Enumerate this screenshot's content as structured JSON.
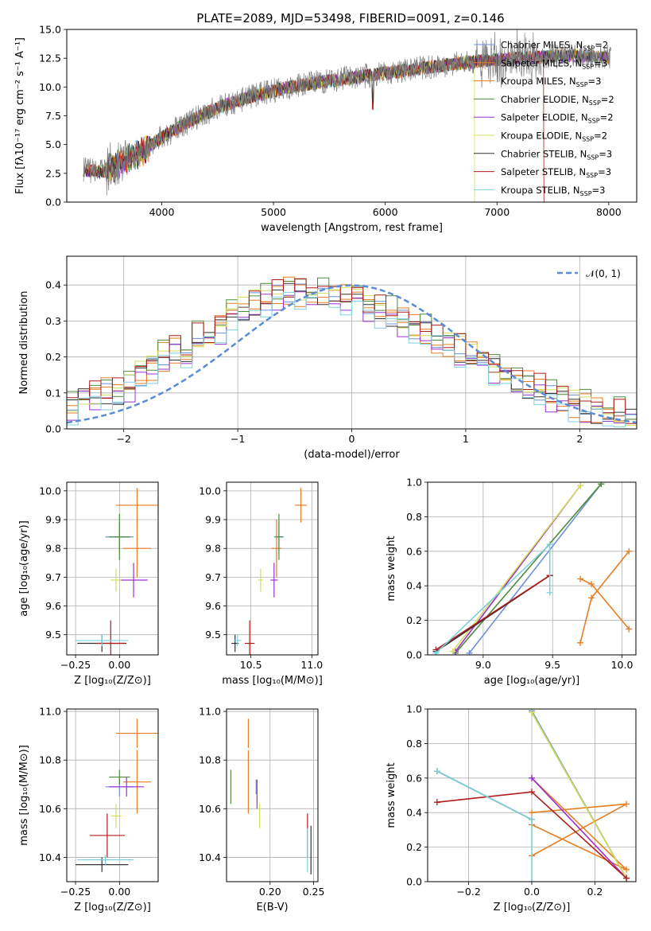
{
  "figure_title": "PLATE=2089, MJD=53498, FIBERID=0091, z=0.146",
  "series_styles": [
    {
      "name": "Chabrier MILES",
      "nssp": "2",
      "color": "#6f8fdc"
    },
    {
      "name": "Salpeter MILES",
      "nssp": "3",
      "color": "#e67e22"
    },
    {
      "name": "Kroupa MILES",
      "nssp": "3",
      "color": "#e67e22"
    },
    {
      "name": "Chabrier ELODIE",
      "nssp": "2",
      "color": "#4c8a3c"
    },
    {
      "name": "Salpeter ELODIE",
      "nssp": "2",
      "color": "#9b30d0"
    },
    {
      "name": "Kroupa ELODIE",
      "nssp": "2",
      "color": "#d4e05a"
    },
    {
      "name": "Chabrier STELIB",
      "nssp": "3",
      "color": "#333333"
    },
    {
      "name": "Salpeter STELIB",
      "nssp": "3",
      "color": "#b01c1c"
    },
    {
      "name": "Kroupa STELIB",
      "nssp": "3",
      "color": "#7ed0dc"
    }
  ],
  "chart_data": [
    {
      "id": "spectrum",
      "type": "line",
      "xlabel": "wavelength [Angstrom, rest frame]",
      "ylabel": "Flux [fλ10⁻¹⁷ erg cm⁻² s⁻¹ A⁻¹]",
      "xlim": [
        3150,
        8250
      ],
      "ylim": [
        0,
        15
      ],
      "xticks": [
        4000,
        5000,
        6000,
        7000,
        8000
      ],
      "yticks": [
        0.0,
        2.5,
        5.0,
        7.5,
        10.0,
        12.5,
        15.0
      ],
      "legend_position": "top-right",
      "continuum": {
        "x": [
          3300,
          3450,
          3600,
          3800,
          4000,
          4200,
          4500,
          4800,
          5100,
          5400,
          5700,
          6000,
          6300,
          6600,
          6900,
          7200,
          7500,
          7800,
          8000
        ],
        "y": [
          2.8,
          2.6,
          3.2,
          4.3,
          5.6,
          6.8,
          8.2,
          9.2,
          9.9,
          10.4,
          10.8,
          11.2,
          11.6,
          12.0,
          12.3,
          12.5,
          12.7,
          12.7,
          12.6
        ]
      },
      "grid": false
    },
    {
      "id": "residuals",
      "type": "histogram",
      "xlabel": "(data-model)/error",
      "ylabel": "Normed distribution",
      "xlim": [
        -2.5,
        2.5
      ],
      "ylim": [
        0,
        0.48
      ],
      "xticks": [
        -2,
        -1,
        0,
        1,
        2
      ],
      "yticks": [
        0.0,
        0.1,
        0.2,
        0.3,
        0.4
      ],
      "reference_label": "𝒩(0, 1)",
      "legend_position": "top-right",
      "bin_edges_start": -2.5,
      "bin_width": 0.1,
      "base_hist": [
        0.06,
        0.09,
        0.09,
        0.1,
        0.1,
        0.12,
        0.15,
        0.17,
        0.2,
        0.22,
        0.22,
        0.25,
        0.25,
        0.28,
        0.31,
        0.33,
        0.35,
        0.36,
        0.37,
        0.38,
        0.38,
        0.39,
        0.38,
        0.37,
        0.36,
        0.35,
        0.34,
        0.33,
        0.32,
        0.3,
        0.28,
        0.27,
        0.25,
        0.24,
        0.22,
        0.2,
        0.18,
        0.17,
        0.15,
        0.13,
        0.12,
        0.11,
        0.09,
        0.08,
        0.07,
        0.06,
        0.05,
        0.05,
        0.04,
        0.03
      ],
      "grid": true
    },
    {
      "id": "age-vs-Z",
      "type": "errorbar",
      "xlabel": "Z [log₁₀(Z/Z⊙)]",
      "ylabel": "age [log₁₀(age/yr)]",
      "xlim": [
        -0.3,
        0.22
      ],
      "ylim": [
        9.43,
        10.03
      ],
      "xticks": [
        -0.25,
        0.0
      ],
      "yticks": [
        9.5,
        9.6,
        9.7,
        9.8,
        9.9,
        10.0
      ],
      "points": [
        {
          "series": 0,
          "x": 0.0,
          "y": 9.84,
          "xerr": 0.08,
          "yerr": 0.05
        },
        {
          "series": 1,
          "x": 0.1,
          "y": 9.8,
          "xerr": 0.08,
          "yerr": 0.1
        },
        {
          "series": 2,
          "x": 0.1,
          "y": 9.95,
          "xerr": 0.12,
          "yerr": 0.06
        },
        {
          "series": 3,
          "x": 0.0,
          "y": 9.84,
          "xerr": 0.06,
          "yerr": 0.08
        },
        {
          "series": 4,
          "x": 0.08,
          "y": 9.69,
          "xerr": 0.08,
          "yerr": 0.06
        },
        {
          "series": 5,
          "x": -0.02,
          "y": 9.69,
          "xerr": 0.03,
          "yerr": 0.04
        },
        {
          "series": 6,
          "x": -0.1,
          "y": 9.47,
          "xerr": 0.14,
          "yerr": 0.03
        },
        {
          "series": 7,
          "x": -0.05,
          "y": 9.47,
          "xerr": 0.08,
          "yerr": 0.08
        },
        {
          "series": 8,
          "x": -0.1,
          "y": 9.48,
          "xerr": 0.15,
          "yerr": 0.02
        }
      ],
      "grid": true
    },
    {
      "id": "age-vs-mass",
      "type": "errorbar",
      "xlabel": "mass [log₁₀(M/M⊙)]",
      "ylabel": "",
      "xlim": [
        10.3,
        11.05
      ],
      "ylim": [
        9.43,
        10.03
      ],
      "xticks": [
        10.5,
        11.0
      ],
      "yticks": [
        9.5,
        9.6,
        9.7,
        9.8,
        9.9,
        10.0
      ],
      "points": [
        {
          "series": 0,
          "x": 10.73,
          "y": 9.84,
          "xerr": 0.04,
          "yerr": 0.05
        },
        {
          "series": 1,
          "x": 10.71,
          "y": 9.8,
          "xerr": 0.04,
          "yerr": 0.1
        },
        {
          "series": 2,
          "x": 10.91,
          "y": 9.95,
          "xerr": 0.05,
          "yerr": 0.06
        },
        {
          "series": 3,
          "x": 10.73,
          "y": 9.84,
          "xerr": 0.03,
          "yerr": 0.08
        },
        {
          "series": 4,
          "x": 10.69,
          "y": 9.69,
          "xerr": 0.03,
          "yerr": 0.06
        },
        {
          "series": 5,
          "x": 10.58,
          "y": 9.69,
          "xerr": 0.02,
          "yerr": 0.04
        },
        {
          "series": 6,
          "x": 10.37,
          "y": 9.47,
          "xerr": 0.03,
          "yerr": 0.03
        },
        {
          "series": 7,
          "x": 10.49,
          "y": 9.47,
          "xerr": 0.04,
          "yerr": 0.08
        },
        {
          "series": 8,
          "x": 10.39,
          "y": 9.48,
          "xerr": 0.03,
          "yerr": 0.02
        }
      ],
      "grid": true
    },
    {
      "id": "weight-vs-age",
      "type": "line",
      "xlabel": "age [log₁₀(age/yr)]",
      "ylabel": "mass weight",
      "xlim": [
        8.6,
        10.1
      ],
      "ylim": [
        0,
        1
      ],
      "xticks": [
        9.0,
        9.5,
        10.0
      ],
      "yticks": [
        0.0,
        0.2,
        0.4,
        0.6,
        0.8,
        1.0
      ],
      "series": [
        {
          "series": 0,
          "x": [
            8.9,
            9.85
          ],
          "y": [
            0.01,
            0.99
          ]
        },
        {
          "series": 1,
          "x": [
            10.05,
            9.78,
            9.7
          ],
          "y": [
            0.15,
            0.41,
            0.44
          ]
        },
        {
          "series": 2,
          "x": [
            10.05,
            9.78,
            9.7
          ],
          "y": [
            0.6,
            0.33,
            0.07
          ]
        },
        {
          "series": 3,
          "x": [
            8.8,
            9.85
          ],
          "y": [
            0.01,
            0.99
          ]
        },
        {
          "series": 4,
          "x": [
            8.8,
            9.7
          ],
          "y": [
            0.02,
            0.98
          ]
        },
        {
          "series": 5,
          "x": [
            8.78,
            9.7
          ],
          "y": [
            0.02,
            0.98
          ]
        },
        {
          "series": 6,
          "x": [
            8.66,
            9.48
          ],
          "y": [
            0.02,
            0.46
          ]
        },
        {
          "series": 7,
          "x": [
            8.66,
            9.48
          ],
          "y": [
            0.03,
            0.46
          ]
        },
        {
          "series": 8,
          "x": [
            8.66,
            9.48,
            9.48
          ],
          "y": [
            0.01,
            0.64,
            0.36
          ]
        }
      ],
      "grid": true
    },
    {
      "id": "mass-vs-Z",
      "type": "errorbar",
      "xlabel": "Z [log₁₀(Z/Z⊙)]",
      "ylabel": "mass [log₁₀(M/M⊙)]",
      "xlim": [
        -0.3,
        0.22
      ],
      "ylim": [
        10.3,
        11.01
      ],
      "xticks": [
        -0.25,
        0.0
      ],
      "yticks": [
        10.4,
        10.6,
        10.8,
        11.0
      ],
      "points": [
        {
          "series": 0,
          "x": 0.0,
          "y": 10.69,
          "xerr": 0.08,
          "yerr": 0.04
        },
        {
          "series": 1,
          "x": 0.1,
          "y": 10.71,
          "xerr": 0.08,
          "yerr": 0.13
        },
        {
          "series": 2,
          "x": 0.1,
          "y": 10.91,
          "xerr": 0.12,
          "yerr": 0.06
        },
        {
          "series": 3,
          "x": 0.0,
          "y": 10.73,
          "xerr": 0.06,
          "yerr": 0.03
        },
        {
          "series": 4,
          "x": 0.04,
          "y": 10.69,
          "xerr": 0.1,
          "yerr": 0.04
        },
        {
          "series": 5,
          "x": -0.02,
          "y": 10.57,
          "xerr": 0.03,
          "yerr": 0.05
        },
        {
          "series": 6,
          "x": -0.1,
          "y": 10.37,
          "xerr": 0.15,
          "yerr": 0.03
        },
        {
          "series": 7,
          "x": -0.07,
          "y": 10.49,
          "xerr": 0.1,
          "yerr": 0.09
        },
        {
          "series": 8,
          "x": -0.08,
          "y": 10.39,
          "xerr": 0.16,
          "yerr": 0.02
        }
      ],
      "grid": true
    },
    {
      "id": "mass-vs-ebv",
      "type": "errorbar",
      "xlabel": "E(B-V)",
      "ylabel": "",
      "xlim": [
        0.15,
        0.255
      ],
      "ylim": [
        10.3,
        11.01
      ],
      "xticks": [
        0.2,
        0.25
      ],
      "yticks": [
        10.4,
        10.6,
        10.8,
        11.0
      ],
      "points": [
        {
          "series": 0,
          "x": 0.184,
          "y": 10.69,
          "xerr": 0.0,
          "yerr": 0.03
        },
        {
          "series": 1,
          "x": 0.175,
          "y": 10.71,
          "xerr": 0.0,
          "yerr": 0.13
        },
        {
          "series": 2,
          "x": 0.175,
          "y": 10.91,
          "xerr": 0.0,
          "yerr": 0.06
        },
        {
          "series": 3,
          "x": 0.155,
          "y": 10.69,
          "xerr": 0.0,
          "yerr": 0.07
        },
        {
          "series": 4,
          "x": 0.185,
          "y": 10.66,
          "xerr": 0.0,
          "yerr": 0.06
        },
        {
          "series": 5,
          "x": 0.188,
          "y": 10.57,
          "xerr": 0.0,
          "yerr": 0.05
        },
        {
          "series": 6,
          "x": 0.247,
          "y": 10.43,
          "xerr": 0.0,
          "yerr": 0.1
        },
        {
          "series": 7,
          "x": 0.243,
          "y": 10.49,
          "xerr": 0.0,
          "yerr": 0.09
        },
        {
          "series": 8,
          "x": 0.243,
          "y": 10.43,
          "xerr": 0.0,
          "yerr": 0.09
        }
      ],
      "grid": true
    },
    {
      "id": "weight-vs-Z",
      "type": "line",
      "xlabel": "Z [log₁₀(Z/Z⊙)]",
      "ylabel": "mass weight",
      "xlim": [
        -0.33,
        0.33
      ],
      "ylim": [
        0,
        1
      ],
      "xticks": [
        -0.2,
        0.0,
        0.2
      ],
      "yticks": [
        0.0,
        0.2,
        0.4,
        0.6,
        0.8,
        1.0
      ],
      "series": [
        {
          "series": 0,
          "x": [
            0.0,
            0.3
          ],
          "y": [
            0.99,
            0.02
          ]
        },
        {
          "series": 1,
          "x": [
            0.0,
            0.3,
            0.0
          ],
          "y": [
            0.15,
            0.45,
            0.4
          ]
        },
        {
          "series": 2,
          "x": [
            0.0,
            0.3,
            0.0
          ],
          "y": [
            0.6,
            0.07,
            0.33
          ]
        },
        {
          "series": 3,
          "x": [
            0.0,
            0.3
          ],
          "y": [
            0.98,
            0.02
          ]
        },
        {
          "series": 4,
          "x": [
            0.0,
            0.3
          ],
          "y": [
            0.6,
            0.02
          ]
        },
        {
          "series": 5,
          "x": [
            0.0,
            0.3
          ],
          "y": [
            0.98,
            0.02
          ]
        },
        {
          "series": 6,
          "x": [
            -0.3,
            0.0
          ],
          "y": [
            0.64,
            0.36
          ]
        },
        {
          "series": 7,
          "x": [
            -0.3,
            0.0,
            0.3
          ],
          "y": [
            0.46,
            0.52,
            0.02
          ]
        },
        {
          "series": 8,
          "x": [
            -0.3,
            0.0,
            0.0
          ],
          "y": [
            0.64,
            0.36,
            0.0
          ]
        }
      ],
      "grid": true
    }
  ]
}
